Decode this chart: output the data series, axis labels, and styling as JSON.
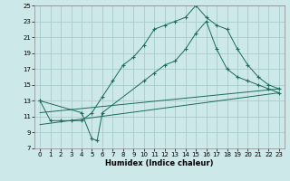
{
  "xlabel": "Humidex (Indice chaleur)",
  "xlim": [
    -0.5,
    23.5
  ],
  "ylim": [
    7,
    25
  ],
  "xticks": [
    0,
    1,
    2,
    3,
    4,
    5,
    6,
    7,
    8,
    9,
    10,
    11,
    12,
    13,
    14,
    15,
    16,
    17,
    18,
    19,
    20,
    21,
    22,
    23
  ],
  "yticks": [
    7,
    9,
    11,
    13,
    15,
    17,
    19,
    21,
    23,
    25
  ],
  "background_color": "#cce8e8",
  "grid_color": "#aacccc",
  "line_color": "#1a6b5a",
  "line1_x": [
    0,
    1,
    2,
    3,
    4,
    5,
    6,
    7,
    8,
    9,
    10,
    11,
    12,
    13,
    14,
    15,
    16,
    17,
    18,
    19,
    20,
    21,
    22,
    23
  ],
  "line1_y": [
    13,
    10.5,
    10.5,
    10.5,
    10.5,
    11.5,
    13.5,
    15.5,
    17.5,
    18.5,
    20.0,
    22.0,
    22.5,
    23.0,
    23.5,
    25.0,
    23.5,
    22.5,
    22.0,
    19.5,
    17.5,
    16.0,
    15.0,
    14.5
  ],
  "line2_x": [
    0,
    4,
    5,
    5.5,
    6,
    10,
    11,
    12,
    13,
    14,
    15,
    16,
    17,
    18,
    19,
    20,
    21,
    22,
    23
  ],
  "line2_y": [
    13,
    11.5,
    8.2,
    8.0,
    11.5,
    15.5,
    16.5,
    17.5,
    18.0,
    19.5,
    21.5,
    23.0,
    19.5,
    17.0,
    16.0,
    15.5,
    15.0,
    14.5,
    14.0
  ],
  "line3_x": [
    0,
    23
  ],
  "line3_y": [
    10.0,
    14.0
  ],
  "line4_x": [
    0,
    23
  ],
  "line4_y": [
    11.5,
    14.5
  ],
  "figsize": [
    3.2,
    2.0
  ],
  "dpi": 100
}
